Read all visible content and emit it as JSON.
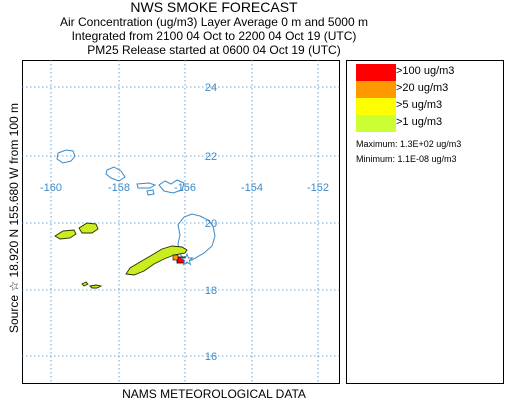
{
  "title": {
    "line1": "NWS SMOKE FORECAST",
    "line2": "Air Concentration (ug/m3) Layer Average    0 m and  5000 m",
    "line3": "Integrated from 2100 04 Oct to 2200 04 Oct 19 (UTC)",
    "line4": "PM25 Release started at 0600 04 Oct 19 (UTC)"
  },
  "source_label_left": "Source ☆  18.920  N 155.680  W",
  "source_label_right": "from  100 m",
  "footer": "NAMS METEOROLOGICAL DATA",
  "map": {
    "lat_labels": [
      "24",
      "22",
      "20",
      "18",
      "16"
    ],
    "lon_labels": [
      "-160",
      "-158",
      "-156",
      "-154",
      "-152"
    ],
    "grid_color": "#4a8cc8",
    "coast_color": "#3a8ac8",
    "plume_color": "#c8ee20",
    "source_icon": "star-icon"
  },
  "legend": {
    "items": [
      {
        "label": ">100 ug/m3",
        "color": "#ff0000"
      },
      {
        "label": ">20 ug/m3",
        "color": "#ff9900"
      },
      {
        "label": ">5 ug/m3",
        "color": "#ffff00"
      },
      {
        "label": ">1 ug/m3",
        "color": "#ccff33"
      }
    ],
    "maximum": "Maximum: 1.3E+02 ug/m3",
    "minimum": "Minimum: 1.1E-08 ug/m3"
  }
}
